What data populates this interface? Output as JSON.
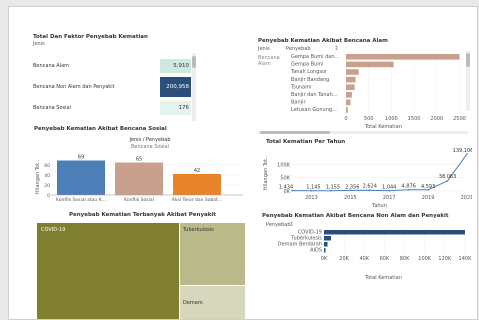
{
  "p1": {
    "title": "Total Dan Faktor Penyebab Kematian",
    "sub": "Jenis",
    "rows": [
      {
        "label": "Bencana Alam",
        "value": "5,910",
        "color": "#cfe9e2"
      },
      {
        "label": "Bencana Non Alam dan Penyakit",
        "value": "200,958",
        "color": "#2a4f7a"
      },
      {
        "label": "Bencana Sosial",
        "value": "176",
        "color": "#e5f3ef"
      }
    ]
  },
  "p2": {
    "title": "Penyebab Kematian Akibat Bencana Alam",
    "col1": "Jenis",
    "col2": "Penyebab",
    "group": "Bencana Alam",
    "xlabel": "Total Kematian",
    "bar_color": "#c9a08e",
    "chart_data": {
      "type": "bar",
      "orientation": "horizontal",
      "categories": [
        "Gempa Bumi dan...",
        "Gempa Bumi",
        "Tanah Longsor",
        "Banjir Bandang",
        "Tsunami",
        "Banjir dan Tanah...",
        "Banjir",
        "Letusan Gunung..."
      ],
      "values": [
        2500,
        1050,
        280,
        210,
        190,
        130,
        100,
        40
      ],
      "xticks": [
        "0",
        "500",
        "1000",
        "1500",
        "2000",
        "2500"
      ],
      "xlim": [
        0,
        2600
      ],
      "xlabel": "Total Kematian"
    }
  },
  "p3": {
    "title": "Penyebab Kematian Akibat Bencana Sosial",
    "header1": "Jenis / Penyebab",
    "header2": "Bencana Sosial",
    "ylabel": "Hilangan Tot..",
    "chart_data": {
      "type": "bar",
      "categories": [
        "Konflik Sosial atau K...",
        "Konflik Sosial",
        "Aksi Teror dan Sabot..."
      ],
      "values": [
        69,
        65,
        42
      ],
      "colors": [
        "#4c7fb8",
        "#c9a08e",
        "#e8832a"
      ],
      "yticks": [
        "0",
        "20",
        "40",
        "60"
      ],
      "ylim": [
        0,
        80
      ]
    }
  },
  "p4": {
    "title": "Total Kematian Per Tahun",
    "ylabel": "Hilangan Tot..",
    "xlabel": "Tahun",
    "chart_data": {
      "type": "line",
      "x": [
        2012,
        2013,
        2014,
        2015,
        2016,
        2017,
        2018,
        2019,
        2020,
        2021
      ],
      "values": [
        1434,
        1145,
        1155,
        2356,
        2624,
        1044,
        4876,
        4593,
        38063,
        139106
      ],
      "point_labels": [
        "1,434",
        "1,145",
        "1,155",
        "2,356",
        "2,624",
        "1,044",
        "4,876",
        "4,593",
        "38,063",
        "139,106"
      ],
      "yticks": [
        "0K",
        "50K",
        "100K"
      ],
      "xticks": [
        "2013",
        "2015",
        "2017",
        "2019",
        "2021"
      ],
      "ylim": [
        0,
        150000
      ],
      "color": "#4c7fb8"
    }
  },
  "p5": {
    "title": "Penyebab Kematian Terbanyak Akibat Penyakit",
    "items": [
      {
        "label": "COVID-19",
        "color": "#7f7f2f"
      },
      {
        "label": "Tuberkulosis",
        "color": "#b9b98a"
      },
      {
        "label": "Demam",
        "color": "#d7d7bd"
      }
    ]
  },
  "p6": {
    "title": "Penyebab Kematian Akibat Bencana Non Alam dan Penyakit",
    "col": "Penyebab",
    "xlabel": "Total Kematian",
    "bar_color": "#2a4f7a",
    "chart_data": {
      "type": "bar",
      "orientation": "horizontal",
      "categories": [
        "COVID-19",
        "Tuberkulosis",
        "Demam Berdarah",
        "AIDS"
      ],
      "values": [
        140000,
        7000,
        3500,
        1500
      ],
      "xticks": [
        "0K",
        "20K",
        "40K",
        "60K",
        "80K",
        "100K",
        "120K",
        "140K"
      ],
      "xlim": [
        0,
        145000
      ],
      "xlabel": "Total Kematian"
    }
  }
}
